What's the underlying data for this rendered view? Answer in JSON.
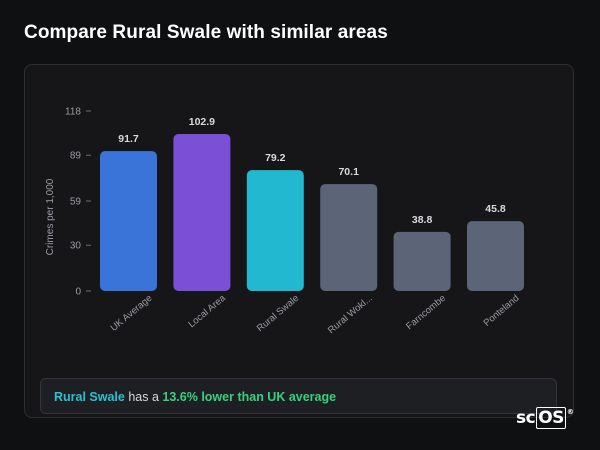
{
  "header": {
    "title": "Compare Rural Swale with similar areas"
  },
  "summary": {
    "area": "Rural Swale",
    "text_middle": " has a ",
    "highlight": "13.6% lower than UK average"
  },
  "brand": {
    "name_prefix": "sc",
    "name_box": "OS",
    "reg_mark": "®"
  },
  "chart_data": {
    "type": "bar",
    "ylabel": "Crimes per 1,000",
    "ylim": [
      0,
      118
    ],
    "yticks": [
      0,
      30,
      59,
      89,
      118
    ],
    "categories": [
      "UK Average",
      "Local Area",
      "Rural Swale",
      "Rural Wokl...",
      "Farncombe",
      "Ponteland"
    ],
    "values": [
      91.7,
      102.9,
      79.2,
      70.1,
      38.8,
      45.8
    ],
    "value_labels": [
      "91.7",
      "102.9",
      "79.2",
      "70.1",
      "38.8",
      "45.8"
    ],
    "colors": [
      "#3a74d9",
      "#7b4fd6",
      "#22b8cf",
      "#5b6577",
      "#5b6577",
      "#5b6577"
    ]
  }
}
